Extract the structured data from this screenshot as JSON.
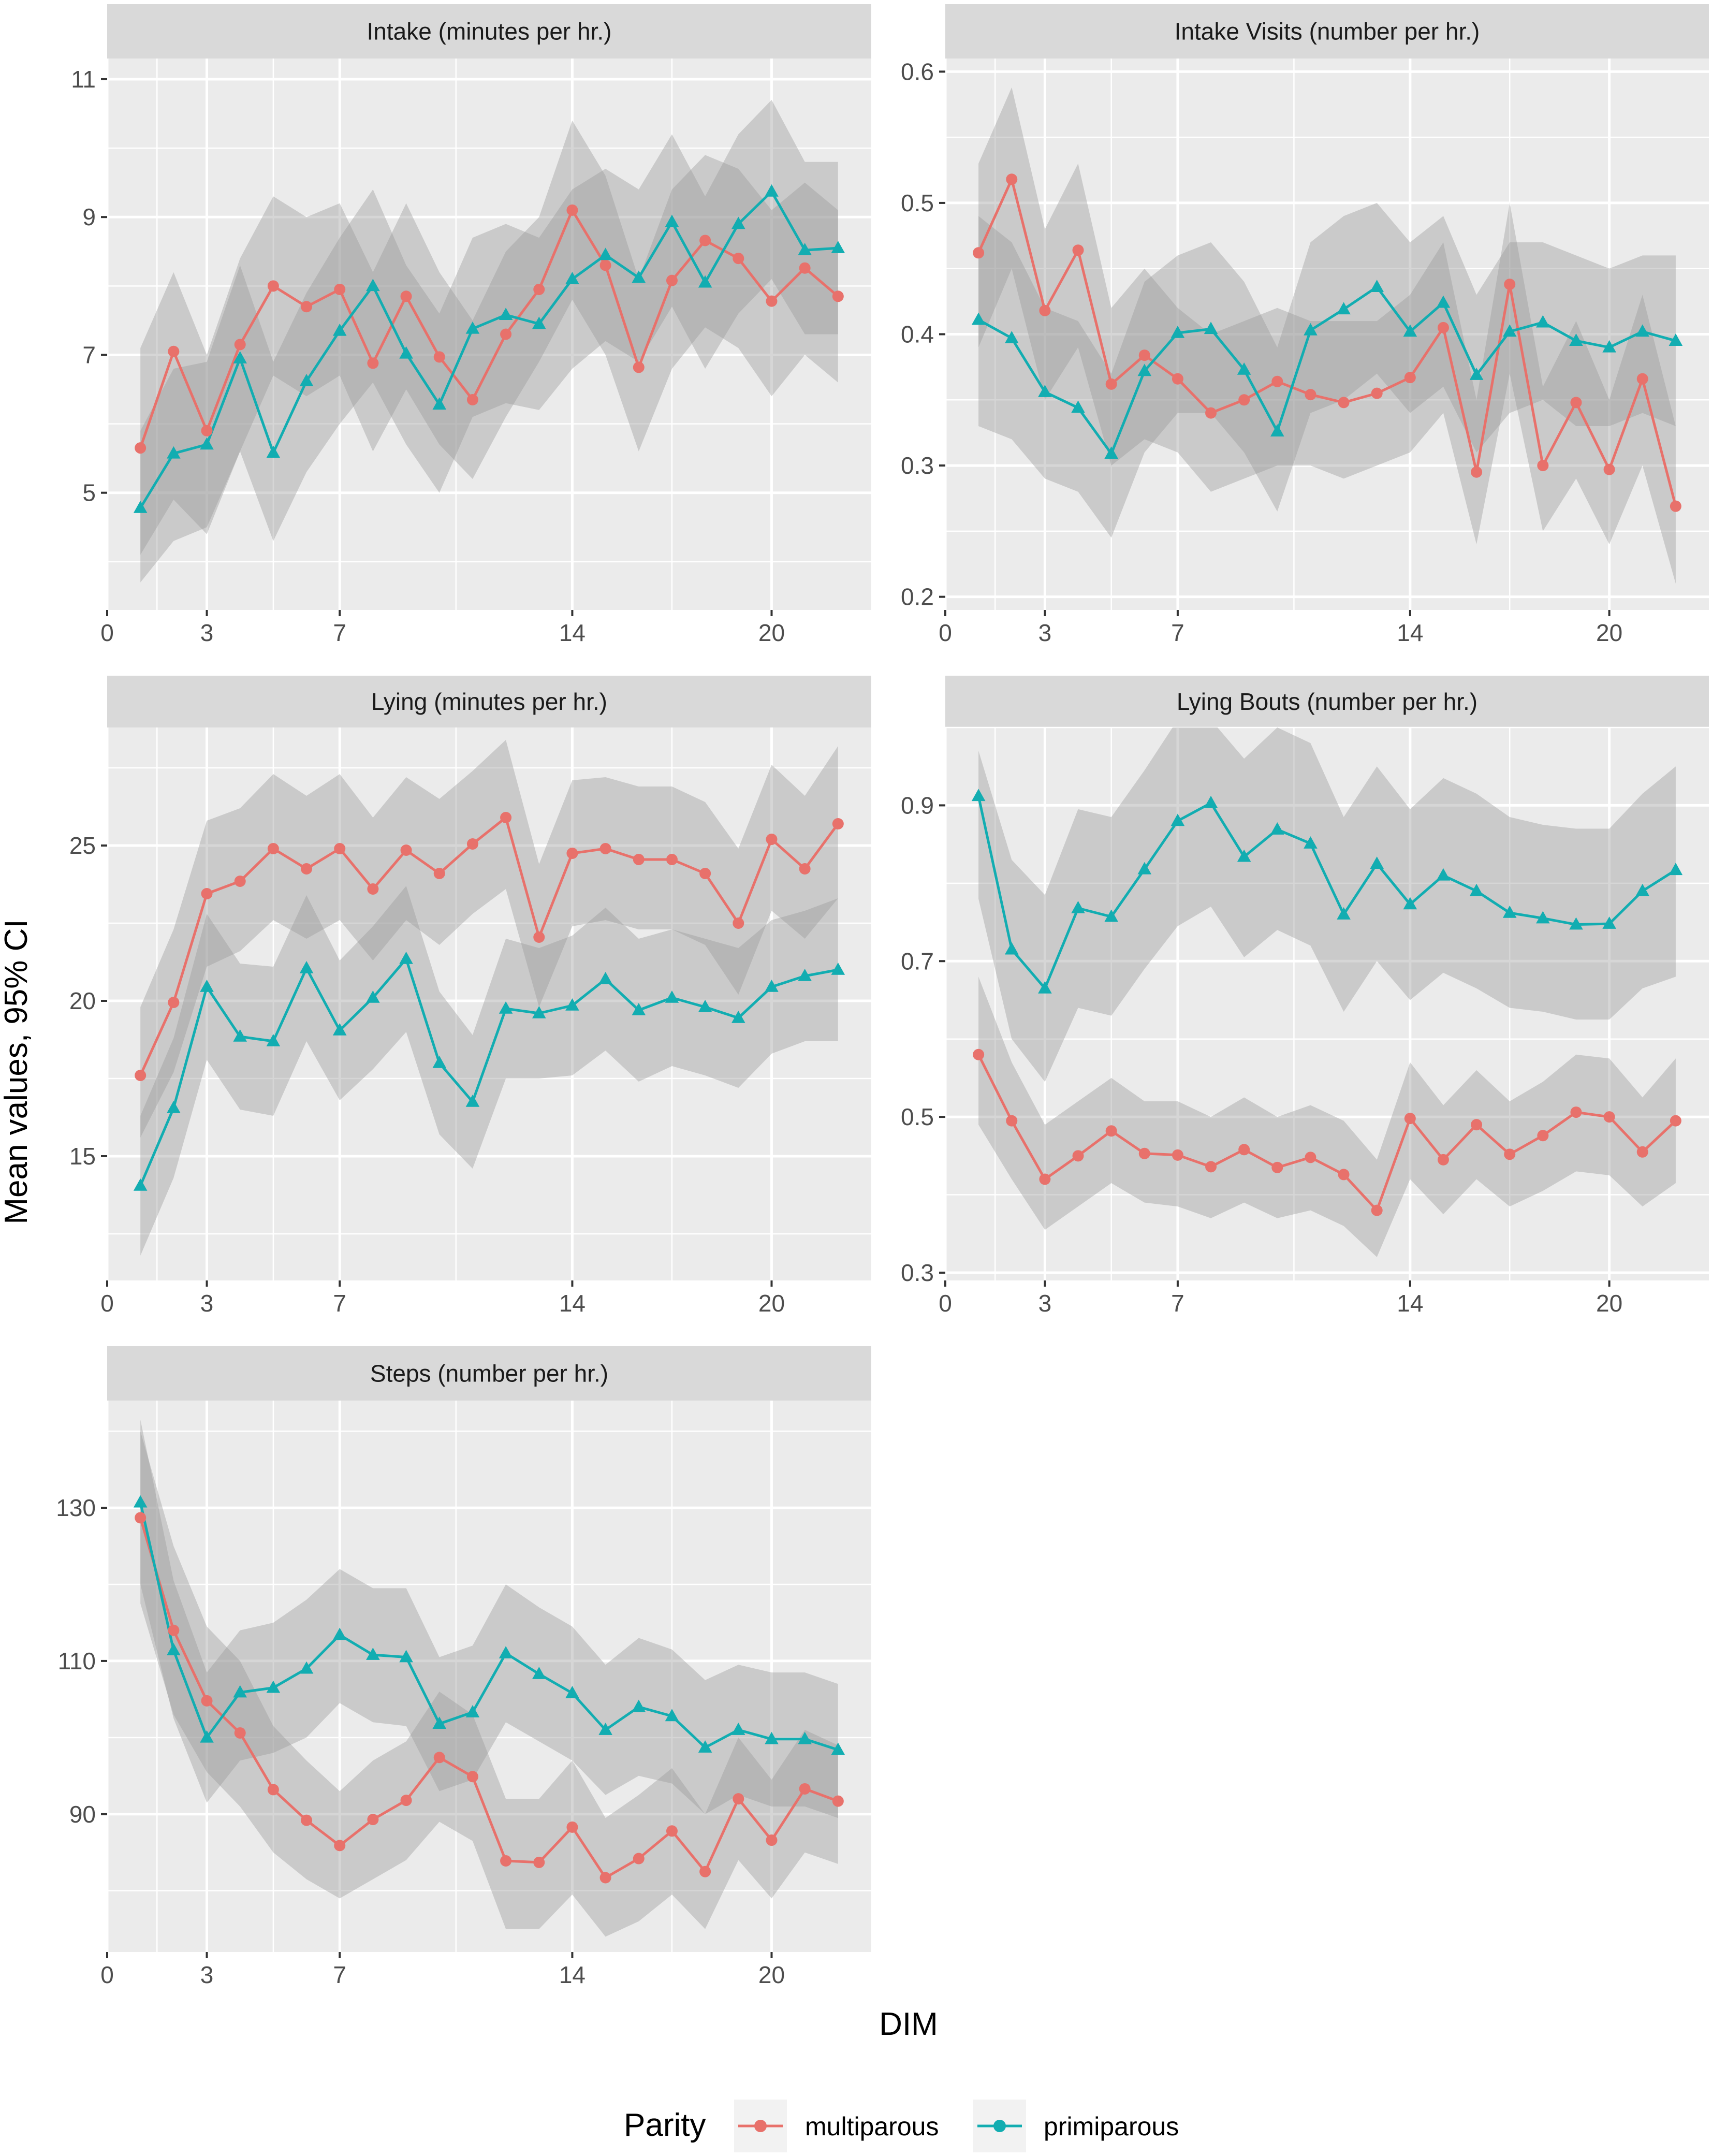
{
  "figure": {
    "x_title": "DIM",
    "y_title": "Mean values, 95% CI",
    "legend_title": "Parity",
    "panel_bg": "#ebebeb",
    "strip_bg": "#d9d9d9",
    "ribbon_color": "#999999"
  },
  "chart_data": [
    {
      "type": "line",
      "title": "Intake (minutes per hr.)",
      "xlabel": "DIM",
      "ylabel": "Mean values, 95% CI",
      "xlim": [
        0,
        23
      ],
      "ylim": [
        3.3,
        11.3
      ],
      "xticks": [
        0,
        3,
        7,
        14,
        20
      ],
      "yticks": [
        5,
        7,
        9,
        11
      ],
      "x": [
        1,
        2,
        3,
        4,
        5,
        6,
        7,
        8,
        9,
        10,
        11,
        12,
        13,
        14,
        15,
        16,
        17,
        18,
        19,
        20,
        21,
        22
      ],
      "series": [
        {
          "name": "multiparous",
          "color": "#e8716b",
          "marker": "circle",
          "values": [
            5.65,
            7.05,
            5.9,
            7.15,
            8.0,
            7.7,
            7.95,
            6.88,
            7.85,
            6.97,
            6.35,
            7.3,
            7.95,
            9.1,
            8.3,
            6.82,
            8.08,
            8.66,
            8.4,
            7.78,
            8.26,
            7.85
          ],
          "ci_lower": [
            4.1,
            4.9,
            4.4,
            5.6,
            6.7,
            6.4,
            6.7,
            5.6,
            6.5,
            5.7,
            5.2,
            6.1,
            6.9,
            7.8,
            7.0,
            5.6,
            6.8,
            7.4,
            7.1,
            6.4,
            7.0,
            6.6
          ],
          "ci_upper": [
            7.1,
            8.2,
            7.0,
            8.4,
            9.3,
            9.0,
            9.2,
            8.2,
            9.2,
            8.2,
            7.5,
            8.5,
            9.0,
            10.4,
            9.6,
            8.1,
            9.4,
            9.9,
            9.7,
            9.1,
            9.5,
            9.1
          ]
        },
        {
          "name": "primiparous",
          "color": "#12adb1",
          "marker": "triangle",
          "values": [
            4.78,
            5.57,
            5.7,
            6.95,
            5.58,
            6.62,
            7.35,
            8.0,
            7.02,
            6.28,
            7.38,
            7.58,
            7.45,
            8.1,
            8.45,
            8.12,
            8.93,
            8.05,
            8.9,
            9.37,
            8.52,
            8.55
          ],
          "ci_lower": [
            3.7,
            4.3,
            4.5,
            5.6,
            4.3,
            5.3,
            6.0,
            6.6,
            5.7,
            5.0,
            6.1,
            6.3,
            6.2,
            6.8,
            7.2,
            6.9,
            7.7,
            6.8,
            7.6,
            8.1,
            7.3,
            7.3
          ],
          "ci_upper": [
            5.9,
            6.8,
            6.9,
            8.3,
            6.9,
            7.9,
            8.7,
            9.4,
            8.3,
            7.6,
            8.7,
            8.9,
            8.7,
            9.4,
            9.7,
            9.4,
            10.2,
            9.3,
            10.2,
            10.7,
            9.8,
            9.8
          ]
        }
      ]
    },
    {
      "type": "line",
      "title": "Intake Visits (number per hr.)",
      "xlabel": "DIM",
      "ylabel": "Mean values, 95% CI",
      "xlim": [
        0,
        23
      ],
      "ylim": [
        0.19,
        0.61
      ],
      "xticks": [
        0,
        3,
        7,
        14,
        20
      ],
      "yticks": [
        0.2,
        0.3,
        0.4,
        0.5,
        0.6
      ],
      "x": [
        1,
        2,
        3,
        4,
        5,
        6,
        7,
        8,
        9,
        10,
        11,
        12,
        13,
        14,
        15,
        16,
        17,
        18,
        19,
        20,
        21,
        22
      ],
      "series": [
        {
          "name": "multiparous",
          "color": "#e8716b",
          "marker": "circle",
          "values": [
            0.462,
            0.518,
            0.418,
            0.464,
            0.362,
            0.384,
            0.366,
            0.34,
            0.35,
            0.364,
            0.354,
            0.348,
            0.355,
            0.367,
            0.405,
            0.295,
            0.438,
            0.3,
            0.348,
            0.297,
            0.366,
            0.269
          ],
          "ci_lower": [
            0.39,
            0.45,
            0.35,
            0.39,
            0.3,
            0.32,
            0.31,
            0.28,
            0.29,
            0.3,
            0.3,
            0.29,
            0.3,
            0.31,
            0.34,
            0.24,
            0.37,
            0.25,
            0.29,
            0.24,
            0.3,
            0.21
          ],
          "ci_upper": [
            0.53,
            0.588,
            0.48,
            0.53,
            0.42,
            0.45,
            0.42,
            0.4,
            0.41,
            0.42,
            0.41,
            0.41,
            0.41,
            0.43,
            0.47,
            0.35,
            0.5,
            0.36,
            0.41,
            0.35,
            0.43,
            0.33
          ]
        },
        {
          "name": "primiparous",
          "color": "#12adb1",
          "marker": "triangle",
          "values": [
            0.411,
            0.397,
            0.356,
            0.344,
            0.309,
            0.372,
            0.401,
            0.404,
            0.373,
            0.326,
            0.403,
            0.419,
            0.436,
            0.402,
            0.424,
            0.369,
            0.402,
            0.409,
            0.395,
            0.39,
            0.402,
            0.395
          ],
          "ci_lower": [
            0.33,
            0.32,
            0.29,
            0.28,
            0.245,
            0.31,
            0.34,
            0.34,
            0.31,
            0.265,
            0.34,
            0.35,
            0.37,
            0.34,
            0.36,
            0.31,
            0.34,
            0.35,
            0.33,
            0.33,
            0.34,
            0.33
          ],
          "ci_upper": [
            0.49,
            0.47,
            0.42,
            0.41,
            0.37,
            0.44,
            0.46,
            0.47,
            0.44,
            0.39,
            0.47,
            0.49,
            0.5,
            0.47,
            0.49,
            0.43,
            0.47,
            0.47,
            0.46,
            0.45,
            0.46,
            0.46
          ]
        }
      ]
    },
    {
      "type": "line",
      "title": "Lying (minutes per hr.)",
      "xlabel": "DIM",
      "ylabel": "Mean values, 95% CI",
      "xlim": [
        0,
        23
      ],
      "ylim": [
        11,
        28.8
      ],
      "xticks": [
        0,
        3,
        7,
        14,
        20
      ],
      "yticks": [
        15,
        20,
        25
      ],
      "x": [
        1,
        2,
        3,
        4,
        5,
        6,
        7,
        8,
        9,
        10,
        11,
        12,
        13,
        14,
        15,
        16,
        17,
        18,
        19,
        20,
        21,
        22
      ],
      "series": [
        {
          "name": "multiparous",
          "color": "#e8716b",
          "marker": "circle",
          "values": [
            17.6,
            19.95,
            23.45,
            23.85,
            24.9,
            24.25,
            24.9,
            23.6,
            24.85,
            24.1,
            25.05,
            25.9,
            22.05,
            24.75,
            24.9,
            24.55,
            24.55,
            24.1,
            22.5,
            25.2,
            24.25,
            25.7
          ],
          "ci_lower": [
            15.6,
            17.7,
            21.1,
            21.6,
            22.6,
            22.0,
            22.6,
            21.3,
            22.6,
            21.8,
            22.8,
            23.6,
            19.8,
            22.4,
            22.6,
            22.3,
            22.3,
            21.8,
            20.2,
            22.9,
            22.0,
            23.3
          ],
          "ci_upper": [
            19.8,
            22.3,
            25.8,
            26.2,
            27.3,
            26.6,
            27.3,
            25.9,
            27.2,
            26.5,
            27.4,
            28.4,
            24.4,
            27.1,
            27.2,
            26.9,
            26.9,
            26.4,
            24.9,
            27.6,
            26.6,
            28.2
          ]
        },
        {
          "name": "primiparous",
          "color": "#12adb1",
          "marker": "triangle",
          "values": [
            14.05,
            16.55,
            20.45,
            18.85,
            18.7,
            21.05,
            19.05,
            20.1,
            21.35,
            18.0,
            16.75,
            19.75,
            19.6,
            19.85,
            20.7,
            19.7,
            20.1,
            19.8,
            19.45,
            20.45,
            20.8,
            21.0
          ],
          "ci_lower": [
            11.8,
            14.3,
            18.1,
            16.5,
            16.3,
            18.7,
            16.8,
            17.8,
            19.0,
            15.7,
            14.6,
            17.5,
            17.5,
            17.6,
            18.4,
            17.4,
            17.9,
            17.6,
            17.2,
            18.3,
            18.7,
            18.7
          ],
          "ci_upper": [
            16.3,
            18.8,
            22.8,
            21.2,
            21.1,
            23.4,
            21.3,
            22.4,
            23.7,
            20.3,
            18.9,
            22.0,
            21.7,
            22.1,
            23.0,
            22.0,
            22.3,
            22.0,
            21.7,
            22.6,
            22.9,
            23.3
          ]
        }
      ]
    },
    {
      "type": "line",
      "title": "Lying Bouts (number per hr.)",
      "xlabel": "DIM",
      "ylabel": "Mean values, 95% CI",
      "xlim": [
        0,
        23
      ],
      "ylim": [
        0.29,
        1.0
      ],
      "xticks": [
        0,
        3,
        7,
        14,
        20
      ],
      "yticks": [
        0.3,
        0.5,
        0.7,
        0.9
      ],
      "x": [
        1,
        2,
        3,
        4,
        5,
        6,
        7,
        8,
        9,
        10,
        11,
        12,
        13,
        14,
        15,
        16,
        17,
        18,
        19,
        20,
        21,
        22
      ],
      "series": [
        {
          "name": "multiparous",
          "color": "#e8716b",
          "marker": "circle",
          "values": [
            0.58,
            0.495,
            0.42,
            0.45,
            0.482,
            0.453,
            0.451,
            0.436,
            0.458,
            0.435,
            0.448,
            0.426,
            0.38,
            0.498,
            0.445,
            0.49,
            0.452,
            0.476,
            0.506,
            0.5,
            0.455,
            0.495
          ],
          "ci_lower": [
            0.49,
            0.42,
            0.355,
            0.385,
            0.415,
            0.39,
            0.385,
            0.37,
            0.39,
            0.37,
            0.38,
            0.36,
            0.32,
            0.42,
            0.375,
            0.42,
            0.385,
            0.405,
            0.43,
            0.425,
            0.385,
            0.415
          ],
          "ci_upper": [
            0.68,
            0.57,
            0.49,
            0.52,
            0.55,
            0.52,
            0.52,
            0.5,
            0.525,
            0.5,
            0.515,
            0.495,
            0.445,
            0.57,
            0.515,
            0.56,
            0.52,
            0.545,
            0.58,
            0.575,
            0.525,
            0.575
          ]
        },
        {
          "name": "primiparous",
          "color": "#12adb1",
          "marker": "triangle",
          "values": [
            0.912,
            0.715,
            0.665,
            0.768,
            0.757,
            0.818,
            0.88,
            0.903,
            0.834,
            0.869,
            0.851,
            0.76,
            0.825,
            0.773,
            0.81,
            0.79,
            0.762,
            0.755,
            0.747,
            0.748,
            0.79,
            0.817
          ],
          "ci_lower": [
            0.78,
            0.6,
            0.545,
            0.64,
            0.63,
            0.69,
            0.745,
            0.77,
            0.705,
            0.74,
            0.72,
            0.635,
            0.7,
            0.65,
            0.685,
            0.665,
            0.64,
            0.635,
            0.625,
            0.625,
            0.665,
            0.68
          ],
          "ci_upper": [
            0.97,
            0.83,
            0.785,
            0.895,
            0.885,
            0.945,
            1.01,
            1.01,
            0.96,
            1.0,
            0.98,
            0.885,
            0.95,
            0.895,
            0.935,
            0.915,
            0.885,
            0.875,
            0.87,
            0.87,
            0.915,
            0.95
          ]
        }
      ]
    },
    {
      "type": "line",
      "title": "Steps (number per hr.)",
      "xlabel": "DIM",
      "ylabel": "Mean values, 95% CI",
      "xlim": [
        0,
        23
      ],
      "ylim": [
        72,
        144
      ],
      "xticks": [
        0,
        3,
        7,
        14,
        20
      ],
      "yticks": [
        90,
        110,
        130
      ],
      "x": [
        1,
        2,
        3,
        4,
        5,
        6,
        7,
        8,
        9,
        10,
        11,
        12,
        13,
        14,
        15,
        16,
        17,
        18,
        19,
        20,
        21,
        22
      ],
      "series": [
        {
          "name": "multiparous",
          "color": "#e8716b",
          "marker": "circle",
          "values": [
            128.7,
            114.0,
            104.8,
            100.6,
            93.2,
            89.2,
            85.9,
            89.3,
            91.8,
            97.4,
            94.9,
            83.9,
            83.7,
            88.3,
            81.7,
            84.2,
            87.8,
            82.5,
            92.0,
            86.6,
            93.3,
            91.7
          ],
          "ci_lower": [
            117.5,
            103.0,
            95.5,
            91.0,
            85.0,
            81.5,
            79.0,
            81.5,
            84.0,
            89.0,
            86.5,
            75.0,
            75.0,
            79.5,
            74.0,
            76.0,
            79.5,
            75.0,
            84.0,
            79.0,
            85.0,
            83.5
          ],
          "ci_upper": [
            140.0,
            125.0,
            114.5,
            110.0,
            101.5,
            97.0,
            93.0,
            97.0,
            99.5,
            106.0,
            103.0,
            92.0,
            92.0,
            97.0,
            89.5,
            92.5,
            96.0,
            90.0,
            100.0,
            94.5,
            101.0,
            99.0
          ]
        },
        {
          "name": "primiparous",
          "color": "#12adb1",
          "marker": "triangle",
          "values": [
            130.7,
            111.4,
            100.0,
            105.9,
            106.5,
            109.0,
            113.4,
            110.8,
            110.5,
            101.8,
            103.3,
            111.0,
            108.3,
            105.8,
            101.0,
            104.0,
            102.8,
            98.7,
            101.0,
            99.8,
            99.8,
            98.4
          ],
          "ci_lower": [
            120.0,
            102.5,
            91.5,
            97.0,
            98.0,
            100.0,
            104.5,
            102.0,
            101.5,
            93.0,
            94.5,
            102.0,
            99.5,
            97.0,
            92.5,
            95.0,
            94.0,
            90.0,
            92.5,
            91.0,
            91.0,
            89.5
          ],
          "ci_upper": [
            141.5,
            120.5,
            108.5,
            114.0,
            115.0,
            118.0,
            122.0,
            119.5,
            119.5,
            110.5,
            112.0,
            120.0,
            117.0,
            114.5,
            109.5,
            113.0,
            111.5,
            107.5,
            109.5,
            108.5,
            108.5,
            107.0
          ]
        }
      ]
    }
  ]
}
